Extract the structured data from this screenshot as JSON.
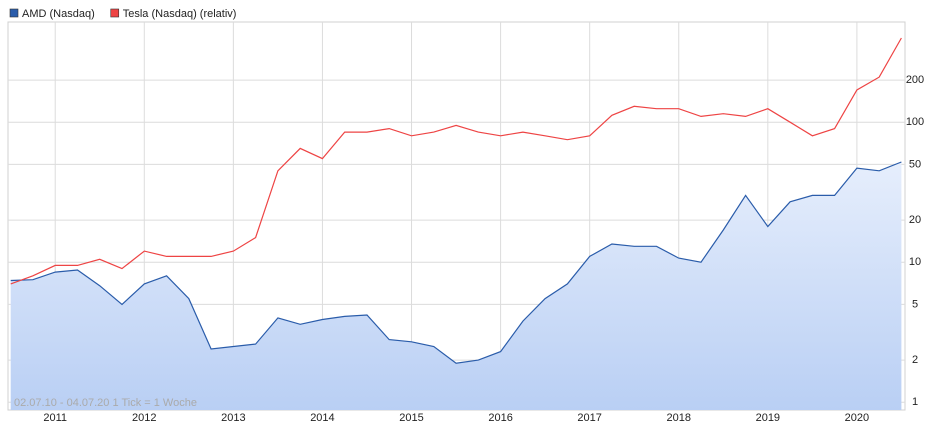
{
  "chart_data": {
    "type": "line",
    "log_y": true,
    "grid": true,
    "legend": "top-left",
    "annotation": "02.07.10 - 04.07.20   1 Tick = 1 Woche",
    "xlim": [
      2010.47,
      2020.54
    ],
    "xticks": [
      2011,
      2012,
      2013,
      2014,
      2015,
      2016,
      2017,
      2018,
      2019,
      2020
    ],
    "ylim": [
      0.88,
      520
    ],
    "yticks": [
      1,
      2,
      5,
      10,
      20,
      50,
      100,
      200
    ],
    "x": [
      2010.5,
      2010.75,
      2011,
      2011.25,
      2011.5,
      2011.75,
      2012,
      2012.25,
      2012.5,
      2012.75,
      2013,
      2013.25,
      2013.5,
      2013.75,
      2014,
      2014.25,
      2014.5,
      2014.75,
      2015,
      2015.25,
      2015.5,
      2015.75,
      2016,
      2016.25,
      2016.5,
      2016.75,
      2017,
      2017.25,
      2017.5,
      2017.75,
      2018,
      2018.25,
      2018.5,
      2018.75,
      2019,
      2019.25,
      2019.5,
      2019.75,
      2020,
      2020.25,
      2020.5
    ],
    "series": [
      {
        "name": "AMD (Nasdaq)",
        "color": "#2a5caa",
        "fill": true,
        "values": [
          7.4,
          7.5,
          8.5,
          8.8,
          6.8,
          5,
          7,
          8,
          5.5,
          2.4,
          2.5,
          2.6,
          4,
          3.6,
          3.9,
          4.1,
          4.2,
          2.8,
          2.7,
          2.5,
          1.9,
          2.0,
          2.3,
          3.8,
          5.5,
          7,
          11,
          13.5,
          13,
          13,
          10.7,
          10,
          17,
          30,
          18,
          27,
          30,
          30,
          47,
          45,
          52
        ]
      },
      {
        "name": "Tesla (Nasdaq) (relativ)",
        "color": "#ee4444",
        "fill": false,
        "values": [
          7,
          8,
          9.5,
          9.5,
          10.5,
          9,
          12,
          11,
          11,
          11,
          12,
          15,
          45,
          65,
          55,
          85,
          85,
          90,
          80,
          85,
          95,
          85,
          80,
          85,
          80,
          75,
          80,
          112,
          130,
          125,
          125,
          110,
          115,
          110,
          125,
          100,
          80,
          90,
          170,
          210,
          400
        ]
      }
    ]
  }
}
